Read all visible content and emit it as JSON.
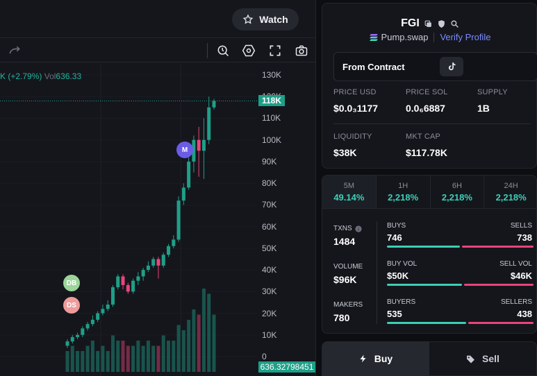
{
  "header": {
    "watch_label": "Watch"
  },
  "toolbar": {
    "icons": [
      "redo-icon",
      "crosshair-zoom-icon",
      "settings-hexagon-icon",
      "fullscreen-icon",
      "camera-icon"
    ]
  },
  "chart": {
    "legend_pct": "+2.79%",
    "legend_vol_label": "Vol",
    "legend_vol_value": "636.33",
    "price_tag": "118K",
    "volume_tag": "636.32798451",
    "markers": {
      "m": "M",
      "db": "DB",
      "ds": "DS"
    }
  },
  "chart_data": {
    "type": "candlestick",
    "y_ticks": [
      "130K",
      "120K",
      "110K",
      "100K",
      "90K",
      "80K",
      "70K",
      "60K",
      "50K",
      "40K",
      "30K",
      "20K",
      "10K",
      "0"
    ],
    "ylim": [
      0,
      130000
    ],
    "last_price": 118000,
    "last_volume": 636.32798451,
    "candles": [
      {
        "o": 5000,
        "c": 7000,
        "h": 8000,
        "l": 4000
      },
      {
        "o": 7000,
        "c": 9000,
        "h": 10000,
        "l": 6000
      },
      {
        "o": 9000,
        "c": 10000,
        "h": 11000,
        "l": 8000
      },
      {
        "o": 10000,
        "c": 13000,
        "h": 14000,
        "l": 9000
      },
      {
        "o": 13000,
        "c": 15000,
        "h": 16000,
        "l": 12000
      },
      {
        "o": 15000,
        "c": 17000,
        "h": 19000,
        "l": 14000
      },
      {
        "o": 17000,
        "c": 20000,
        "h": 21000,
        "l": 16000
      },
      {
        "o": 20000,
        "c": 22000,
        "h": 24000,
        "l": 19000
      },
      {
        "o": 22000,
        "c": 24000,
        "h": 26000,
        "l": 21000
      },
      {
        "o": 24000,
        "c": 32000,
        "h": 33000,
        "l": 23000
      },
      {
        "o": 32000,
        "c": 37000,
        "h": 38000,
        "l": 31000
      },
      {
        "o": 37000,
        "c": 33000,
        "h": 38000,
        "l": 31000
      },
      {
        "o": 33000,
        "c": 30000,
        "h": 34000,
        "l": 29000
      },
      {
        "o": 30000,
        "c": 35000,
        "h": 36000,
        "l": 29000
      },
      {
        "o": 35000,
        "c": 37000,
        "h": 39000,
        "l": 33000
      },
      {
        "o": 37000,
        "c": 40000,
        "h": 41000,
        "l": 35000
      },
      {
        "o": 40000,
        "c": 42000,
        "h": 44000,
        "l": 39000
      },
      {
        "o": 42000,
        "c": 45000,
        "h": 46000,
        "l": 41000
      },
      {
        "o": 45000,
        "c": 42000,
        "h": 46000,
        "l": 36000
      },
      {
        "o": 42000,
        "c": 47000,
        "h": 48000,
        "l": 41000
      },
      {
        "o": 47000,
        "c": 51000,
        "h": 52000,
        "l": 46000
      },
      {
        "o": 51000,
        "c": 54000,
        "h": 56000,
        "l": 50000
      },
      {
        "o": 54000,
        "c": 72000,
        "h": 74000,
        "l": 53000
      },
      {
        "o": 72000,
        "c": 78000,
        "h": 80000,
        "l": 70000
      },
      {
        "o": 78000,
        "c": 90000,
        "h": 92000,
        "l": 77000
      },
      {
        "o": 90000,
        "c": 100000,
        "h": 102000,
        "l": 85000
      },
      {
        "o": 100000,
        "c": 95000,
        "h": 106000,
        "l": 83000
      },
      {
        "o": 95000,
        "c": 100000,
        "h": 110000,
        "l": 82000
      },
      {
        "o": 100000,
        "c": 115000,
        "h": 120000,
        "l": 98000
      },
      {
        "o": 115000,
        "c": 118000,
        "h": 119000,
        "l": 114000
      }
    ],
    "volumes": [
      4,
      5,
      4,
      4,
      5,
      6,
      4,
      5,
      4,
      7,
      6,
      6,
      5,
      5,
      6,
      5,
      6,
      5,
      5,
      7,
      6,
      6,
      9,
      8,
      10,
      12,
      11,
      16,
      15,
      11
    ]
  },
  "token": {
    "symbol": "FGI",
    "dex": "Pump.swap",
    "verify": "Verify Profile",
    "contract_label": "From Contract",
    "stats": {
      "price_usd_label": "PRICE USD",
      "price_usd": "$0.0₃1177",
      "price_sol_label": "PRICE SOL",
      "price_sol": "0.0₆6887",
      "supply_label": "SUPPLY",
      "supply": "1B",
      "liquidity_label": "LIQUIDITY",
      "liquidity": "$38K",
      "mktcap_label": "MKT CAP",
      "mktcap": "$117.78K"
    }
  },
  "timeframes": [
    {
      "label": "5M",
      "value": "49.14%"
    },
    {
      "label": "1H",
      "value": "2,218%"
    },
    {
      "label": "6H",
      "value": "2,218%"
    },
    {
      "label": "24H",
      "value": "2,218%"
    }
  ],
  "txstats": {
    "txns_label": "TXNS",
    "txns": "1484",
    "volume_label": "VOLUME",
    "volume": "$96K",
    "makers_label": "MAKERS",
    "makers": "780",
    "buys_label": "BUYS",
    "buys": "746",
    "sells_label": "SELLS",
    "sells": "738",
    "buyvol_label": "BUY VOL",
    "buyvol": "$50K",
    "sellvol_label": "SELL VOL",
    "sellvol": "$46K",
    "buyers_label": "BUYERS",
    "buyers": "535",
    "sellers_label": "SELLERS",
    "sellers": "438"
  },
  "trade": {
    "buy_label": "Buy",
    "sell_label": "Sell"
  },
  "colors": {
    "up": "#1f9f88",
    "down": "#e8457a",
    "accent": "#3ccfb7",
    "link": "#7b8cff"
  }
}
